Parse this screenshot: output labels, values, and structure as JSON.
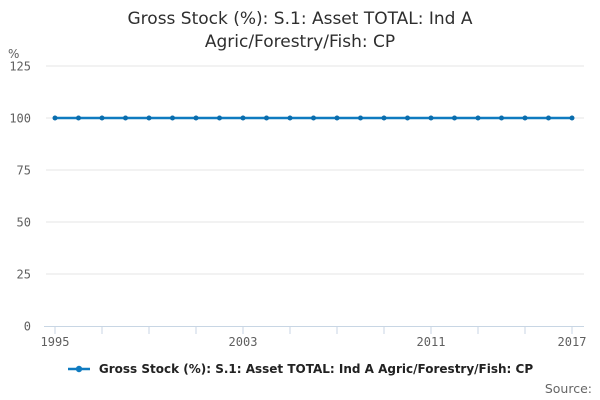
{
  "chart_data": {
    "type": "line",
    "title": "Gross Stock (%): S.1: Asset TOTAL: Ind A Agric/Forestry/Fish: CP",
    "title_lines": [
      "Gross Stock (%): S.1: Asset TOTAL: Ind A",
      "Agric/Forestry/Fish: CP"
    ],
    "ylabel": "%",
    "xlim": [
      1995,
      2017
    ],
    "ylim": [
      0,
      125
    ],
    "yticks": [
      0,
      25,
      50,
      75,
      100,
      125
    ],
    "xticks_minor": [
      1995,
      1997,
      1999,
      2001,
      2003,
      2005,
      2007,
      2009,
      2011,
      2013,
      2015,
      2017
    ],
    "xtick_labels": [
      "1995",
      "2003",
      "2011",
      "2017"
    ],
    "x": [
      1995,
      1996,
      1997,
      1998,
      1999,
      2000,
      2001,
      2002,
      2003,
      2004,
      2005,
      2006,
      2007,
      2008,
      2009,
      2010,
      2011,
      2012,
      2013,
      2014,
      2015,
      2016,
      2017
    ],
    "series": [
      {
        "name": "Gross Stock (%): S.1: Asset TOTAL: Ind A Agric/Forestry/Fish: CP",
        "values": [
          100,
          100,
          100,
          100,
          100,
          100,
          100,
          100,
          100,
          100,
          100,
          100,
          100,
          100,
          100,
          100,
          100,
          100,
          100,
          100,
          100,
          100,
          100
        ]
      }
    ],
    "grid": true,
    "legend_position": "bottom",
    "source_label": "Source:",
    "colors": {
      "series": "#0f7bc0",
      "series_marker": "#0a6dad",
      "grid": "#e6e6e6",
      "axis": "#c8d6e4",
      "tick_text": "#5f5f5f",
      "title_text": "#2e2e2e",
      "legend_text": "#222222",
      "source_text": "#666666"
    }
  }
}
